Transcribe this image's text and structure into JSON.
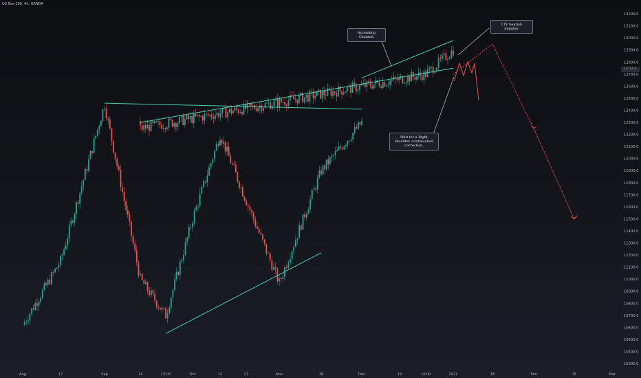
{
  "header": {
    "symbol": "US Nas 100, 4h, OANDA"
  },
  "annotations": {
    "ascending_channel": "Ascending Channel.",
    "ltf_bearish": "LTF bearish impulse.",
    "wait_right_shoulder": "Wait for a Right shoulder, continuation correction."
  },
  "price_badge": "12705.2",
  "colors": {
    "background": "#131722",
    "up_candle": "#26a69a",
    "down_candle": "#ef5350",
    "trendline": "#4ccfb6",
    "projection": "#ef4f4f",
    "axis_text": "#b2b5be"
  },
  "chart_data": {
    "type": "candlestick",
    "timeframe": "4h",
    "x_tick_labels": [
      "Aug",
      "17",
      "Sep",
      "14",
      "13:00",
      "Oct",
      "12",
      "21",
      "Nov",
      "16",
      "Dec",
      "14",
      "14:00",
      "2021",
      "18",
      "Feb",
      "15",
      "Mar"
    ],
    "y_tick_labels": [
      "10300.0",
      "10400.0",
      "10500.0",
      "10600.0",
      "10700.0",
      "10800.0",
      "10900.0",
      "11000.0",
      "11100.0",
      "11200.0",
      "11300.0",
      "11400.0",
      "11500.0",
      "11600.0",
      "11700.0",
      "11800.0",
      "11900.0",
      "12000.0",
      "12100.0",
      "12200.0",
      "12300.0",
      "12400.0",
      "12500.0",
      "12600.0",
      "12700.0",
      "12800.0",
      "12900.0",
      "13000.0",
      "13100.0",
      "13200.0"
    ],
    "ylim": [
      10250,
      13270
    ],
    "grid": false,
    "price_path": [
      {
        "date": "Aug",
        "close": 10620
      },
      {
        "date": "17",
        "close": 11150
      },
      {
        "date": "Sep",
        "close": 12450
      },
      {
        "date": "14",
        "close": 11000
      },
      {
        "date": "13:00",
        "close": 10700
      },
      {
        "date": "Oct",
        "close": 11500
      },
      {
        "date": "12",
        "close": 12200
      },
      {
        "date": "21",
        "close": 11650
      },
      {
        "date": "Nov",
        "close": 10970
      },
      {
        "date": "16",
        "close": 11900
      },
      {
        "date": "Dec",
        "close": 12300
      },
      {
        "date": "14",
        "close": 12250
      },
      {
        "date": "14:00",
        "close": 12700
      },
      {
        "date": "2021",
        "close": 12900
      }
    ],
    "trendlines": [
      {
        "name": "neckline",
        "from": {
          "date": "Sep",
          "price": 12460
        },
        "to": {
          "date": "Dec",
          "price": 12410
        }
      },
      {
        "name": "rising support",
        "from": {
          "date": "13:00",
          "price": 10550
        },
        "to": {
          "date": "16",
          "price": 11220
        }
      },
      {
        "name": "ascending channel upper",
        "from": {
          "date": "Dec",
          "price": 12670
        },
        "to": {
          "date": "2021",
          "price": 12980
        }
      },
      {
        "name": "ascending channel lower",
        "from": {
          "date": "14",
          "price": 12300
        },
        "to": {
          "date": "2021",
          "price": 12750
        }
      }
    ],
    "projection": [
      {
        "date": "2021",
        "price": 12700
      },
      {
        "date": "18",
        "price": 12950
      },
      {
        "date": "Feb",
        "price": 12250
      },
      {
        "date": "15",
        "price": 11500
      }
    ]
  }
}
